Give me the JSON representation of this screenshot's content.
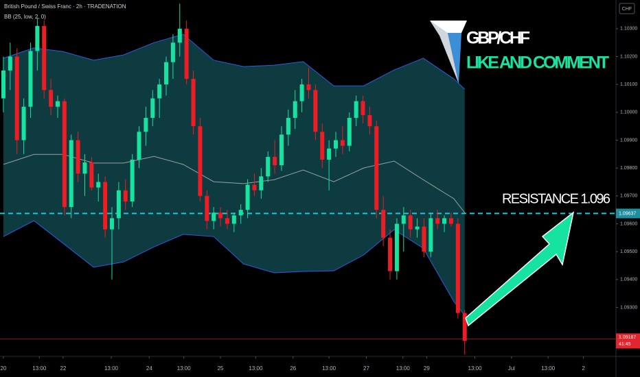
{
  "chart_data": {
    "type": "candlestick",
    "title": "British Pound / Swiss Franc · 2h · TRADENATION",
    "indicator": "BB (25, low, 2, 0)",
    "currency": "CHF",
    "annotations": {
      "pair": "GBP/CHF",
      "cta": "LIKE AND COMMENT",
      "resistance": "RESISTANCE  1.096"
    },
    "resistance_price": 1.09637,
    "last_price": 1.09187,
    "countdown": "41:45",
    "up_color": "#16e3a0",
    "down_color": "#ee1c24",
    "ylim": [
      1.09124,
      1.10403
    ],
    "yticks": [
      {
        "value": 1.093,
        "label": "1.09300"
      },
      {
        "value": 1.094,
        "label": "1.09400"
      },
      {
        "value": 1.095,
        "label": "1.09500"
      },
      {
        "value": 1.096,
        "label": "1.09600"
      },
      {
        "value": 1.097,
        "label": "1.09700"
      },
      {
        "value": 1.098,
        "label": "1.09800"
      },
      {
        "value": 1.099,
        "label": "1.09900"
      },
      {
        "value": 1.1,
        "label": "1.10000"
      },
      {
        "value": 1.101,
        "label": "1.10100"
      },
      {
        "value": 1.102,
        "label": "1.10200"
      },
      {
        "value": 1.103,
        "label": "1.10300"
      }
    ],
    "xlim": [
      -0.5,
      90.3
    ],
    "xticks": [
      {
        "value": 0,
        "label": "20"
      },
      {
        "value": 5.3,
        "label": "13:00"
      },
      {
        "value": 8.8,
        "label": "22"
      },
      {
        "value": 15.9,
        "label": "13:00"
      },
      {
        "value": 21.5,
        "label": "24"
      },
      {
        "value": 26.6,
        "label": "13:00"
      },
      {
        "value": 32,
        "label": "25"
      },
      {
        "value": 37.2,
        "label": "13:00"
      },
      {
        "value": 42.7,
        "label": "26"
      },
      {
        "value": 48,
        "label": "13:00"
      },
      {
        "value": 53.5,
        "label": "27"
      },
      {
        "value": 58.9,
        "label": "13:00"
      },
      {
        "value": 62.4,
        "label": "29"
      },
      {
        "value": 69.5,
        "label": "13:00"
      },
      {
        "value": 74.9,
        "label": "Jul"
      },
      {
        "value": 80.3,
        "label": "13:00"
      },
      {
        "value": 85.5,
        "label": "2"
      }
    ],
    "open": [
      1.1005,
      1.1015,
      1.102,
      1.099,
      1.1002,
      1.1022,
      1.1031,
      1.1008,
      1.1002,
      1.1004,
      1.0966,
      1.099,
      1.0978,
      1.0982,
      1.0973,
      1.0975,
      1.0958,
      1.0962,
      1.0972,
      1.0968,
      1.0983,
      1.0993,
      1.0998,
      1.1005,
      1.101,
      1.1018,
      1.1025,
      1.103,
      1.1012,
      1.0995,
      1.097,
      1.0961,
      1.0964,
      1.0962,
      1.096,
      1.0963,
      1.0965,
      1.0974,
      1.0972,
      1.0977,
      1.0984,
      1.0981,
      1.0992,
      1.0998,
      1.1004,
      1.101,
      1.1008,
      1.0993,
      1.0983,
      1.0987,
      1.099,
      1.0988,
      1.0998,
      1.1004,
      1.0999,
      1.0995,
      1.0965,
      1.0955,
      1.0943,
      1.096,
      1.0963,
      1.0958,
      1.0959,
      1.095,
      1.0962,
      1.096,
      1.0962,
      1.096,
      1.0928
    ],
    "high": [
      1.102,
      1.1025,
      1.1023,
      1.1005,
      1.1025,
      1.1034,
      1.1033,
      1.1012,
      1.1006,
      1.1005,
      1.0992,
      1.0993,
      1.0985,
      1.0984,
      1.0978,
      1.0977,
      1.0966,
      1.0975,
      1.0976,
      1.0985,
      1.0995,
      1.1002,
      1.1008,
      1.1012,
      1.102,
      1.1028,
      1.1039,
      1.1033,
      1.1015,
      1.0998,
      1.0972,
      1.0966,
      1.0966,
      1.0965,
      1.0964,
      1.0967,
      1.0976,
      1.0978,
      1.098,
      1.0986,
      1.099,
      1.0995,
      1.1001,
      1.1008,
      1.1012,
      1.1016,
      1.101,
      1.0996,
      1.099,
      1.0993,
      1.0995,
      1.1,
      1.1006,
      1.1006,
      1.1002,
      1.0997,
      1.097,
      1.0958,
      1.0962,
      1.0966,
      1.0965,
      1.0962,
      1.0962,
      1.0964,
      1.0965,
      1.0963,
      1.0964,
      1.0962,
      1.0929
    ],
    "low": [
      1.1,
      1.1008,
      1.0985,
      1.0985,
      1.0998,
      1.1015,
      1.1005,
      1.0999,
      1.0998,
      1.0963,
      1.0962,
      1.0975,
      1.097,
      1.0972,
      1.0968,
      1.0955,
      1.094,
      1.0958,
      1.0965,
      1.0966,
      1.098,
      1.0988,
      1.0995,
      1.0998,
      1.1006,
      1.1012,
      1.102,
      1.101,
      1.0992,
      1.0968,
      1.0958,
      1.0958,
      1.0959,
      1.0958,
      1.0957,
      1.096,
      1.0962,
      1.097,
      1.0969,
      1.0975,
      1.0978,
      1.0979,
      1.0988,
      1.0994,
      1.1,
      1.1005,
      1.099,
      1.098,
      1.0972,
      1.0984,
      1.0985,
      1.0986,
      1.0995,
      1.0996,
      1.0992,
      1.0962,
      1.0952,
      1.094,
      1.094,
      1.095,
      1.0955,
      1.0955,
      1.0948,
      1.0948,
      1.0958,
      1.0957,
      1.0959,
      1.0926,
      1.0913
    ],
    "close": [
      1.1015,
      1.102,
      1.099,
      1.1002,
      1.1022,
      1.1031,
      1.1008,
      1.1002,
      1.1004,
      1.0966,
      1.099,
      1.0978,
      1.0982,
      1.0973,
      1.0975,
      1.0958,
      1.0962,
      1.0972,
      1.0968,
      1.0983,
      1.0993,
      1.0998,
      1.1005,
      1.101,
      1.1018,
      1.1025,
      1.103,
      1.1012,
      1.0995,
      1.097,
      1.0961,
      1.0964,
      1.0962,
      1.096,
      1.0963,
      1.0965,
      1.0974,
      1.0972,
      1.0977,
      1.0984,
      1.0981,
      1.0992,
      1.0998,
      1.1004,
      1.101,
      1.1008,
      1.0993,
      1.0983,
      1.0987,
      1.099,
      1.0988,
      1.0998,
      1.1004,
      1.0999,
      1.0995,
      1.0965,
      1.0955,
      1.0943,
      1.096,
      1.0963,
      1.0958,
      1.0959,
      1.095,
      1.0962,
      1.096,
      1.0962,
      1.096,
      1.0928,
      1.0918
    ],
    "bands": {
      "x": [
        0,
        4.5,
        8.8,
        13.3,
        17.7,
        22.2,
        26.5,
        31,
        35.4,
        39.9,
        44.2,
        48.7,
        53.1,
        57.6,
        61.9,
        66.4,
        68
      ],
      "upper": [
        1.10194,
        1.10231,
        1.10218,
        1.10187,
        1.10206,
        1.1025,
        1.1028,
        1.10187,
        1.10164,
        1.10169,
        1.10182,
        1.10095,
        1.10095,
        1.10152,
        1.10194,
        1.1012,
        1.10083
      ],
      "basis": [
        1.09813,
        1.09849,
        1.09849,
        1.09818,
        1.09818,
        1.09842,
        1.09813,
        1.09751,
        1.09744,
        1.09758,
        1.09793,
        1.09751,
        1.098,
        1.09825,
        1.09758,
        1.0969,
        1.0964
      ],
      "lower": [
        1.09554,
        1.09611,
        1.0953,
        1.09444,
        1.09463,
        1.09517,
        1.09562,
        1.09554,
        1.09456,
        1.09424,
        1.09429,
        1.09431,
        1.09488,
        1.09579,
        1.09512,
        1.09321,
        1.09271
      ]
    }
  }
}
